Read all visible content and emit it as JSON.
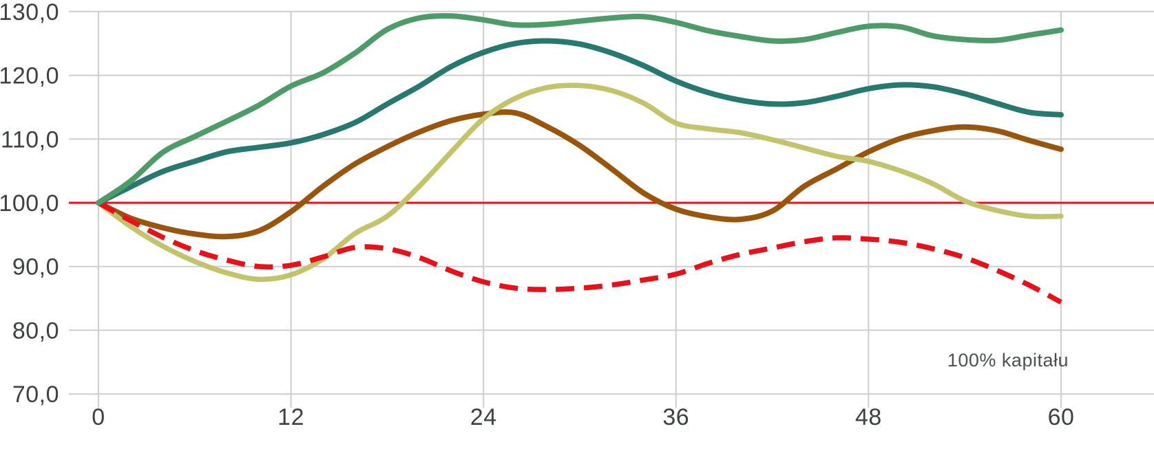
{
  "chart_data": {
    "type": "line",
    "title": "",
    "xlabel": "",
    "ylabel": "",
    "grid": true,
    "legend": "none",
    "x": [
      0,
      2,
      4,
      6,
      8,
      10,
      12,
      14,
      16,
      18,
      20,
      22,
      24,
      26,
      28,
      30,
      32,
      34,
      36,
      38,
      40,
      42,
      44,
      46,
      48,
      50,
      52,
      54,
      56,
      58,
      60
    ],
    "x_tick_values": [
      0,
      12,
      24,
      36,
      48,
      60
    ],
    "x_tick_labels": [
      "0",
      "12",
      "24",
      "36",
      "48",
      "60"
    ],
    "y_tick_values": [
      130,
      120,
      110,
      100,
      90,
      80,
      70
    ],
    "y_tick_labels": [
      "130,0",
      "120,0",
      "110,0",
      "100,0",
      "90,0",
      "80,0",
      "70,0"
    ],
    "xlim": [
      0,
      60
    ],
    "ylim": [
      70,
      130
    ],
    "reference_line": {
      "value": 100.0,
      "label": "100% kapitału",
      "color": "#e8111a"
    },
    "series": [
      {
        "name": "brown-line",
        "color": "#9a550d",
        "dash": "none",
        "width": 8,
        "values": [
          100,
          97.6,
          96.1,
          95.1,
          94.7,
          95.6,
          98.6,
          102.6,
          106.1,
          108.8,
          111.1,
          112.9,
          113.9,
          114.1,
          111.9,
          109.0,
          105.3,
          101.5,
          99.0,
          97.8,
          97.4,
          98.7,
          102.6,
          105.3,
          108.0,
          110.1,
          111.3,
          111.9,
          111.3,
          109.8,
          108.4
        ]
      },
      {
        "name": "olive-line",
        "color": "#c2c36b",
        "dash": "none",
        "width": 7.5,
        "values": [
          100,
          96.3,
          93.2,
          90.8,
          89.0,
          88.0,
          88.7,
          91.2,
          95.2,
          97.9,
          102.6,
          108.0,
          113.2,
          116.4,
          118.1,
          118.4,
          117.6,
          115.6,
          112.5,
          111.6,
          111.0,
          109.9,
          108.6,
          107.3,
          106.5,
          105.0,
          103.0,
          100.3,
          98.8,
          97.9,
          97.9
        ]
      },
      {
        "name": "red-dashed-line",
        "color": "#e8111a",
        "dash": "27 14",
        "width": 7.5,
        "values": [
          100,
          97.2,
          94.6,
          92.5,
          91.0,
          90.0,
          90.2,
          91.5,
          93.0,
          92.8,
          91.4,
          89.3,
          87.6,
          86.6,
          86.4,
          86.6,
          87.1,
          87.9,
          88.8,
          90.5,
          91.9,
          92.9,
          93.9,
          94.5,
          94.3,
          93.8,
          92.8,
          91.4,
          89.4,
          87.1,
          84.4
        ]
      },
      {
        "name": "teal-line",
        "color": "#27786e",
        "dash": "none",
        "width": 8,
        "values": [
          100,
          102.5,
          104.9,
          106.5,
          108.0,
          108.7,
          109.4,
          110.7,
          112.6,
          115.5,
          118.3,
          121.4,
          123.6,
          125.0,
          125.4,
          124.9,
          123.5,
          121.5,
          119.1,
          117.3,
          116.1,
          115.5,
          115.7,
          116.7,
          117.9,
          118.5,
          118.2,
          117.1,
          115.6,
          114.2,
          113.8
        ]
      },
      {
        "name": "green-line",
        "color": "#4d9b68",
        "dash": "none",
        "width": 8,
        "values": [
          100,
          103.4,
          107.9,
          110.4,
          112.8,
          115.3,
          118.3,
          120.4,
          123.5,
          127.2,
          129.0,
          129.3,
          128.7,
          127.9,
          128.0,
          128.5,
          129.0,
          129.2,
          128.3,
          127.0,
          126.1,
          125.4,
          125.6,
          126.7,
          127.7,
          127.6,
          126.2,
          125.6,
          125.5,
          126.3,
          127.1
        ]
      }
    ]
  },
  "colors": {
    "background": "#ffffff",
    "gridline": "#cdcdcd",
    "tick_text": "#3b423f",
    "annotation_text": "#4b524e",
    "reference_line": "#e8111a"
  }
}
